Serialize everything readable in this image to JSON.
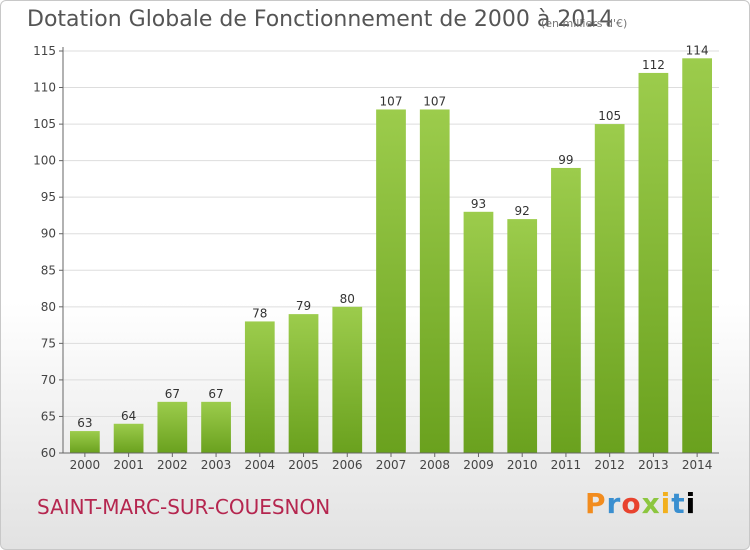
{
  "header": {
    "title": "Dotation Globale de Fonctionnement de 2000 à 2014",
    "unit": "(en milliers d'€)"
  },
  "footer": {
    "commune": "SAINT-MARC-SUR-COUESNON",
    "logo_text": "Proxiti"
  },
  "colors": {
    "bar_top": "#9ccc4c",
    "bar_bottom": "#6aa11e",
    "grid": "#dddddd",
    "title": "#555555",
    "commune": "#b5264f"
  },
  "chart_data": {
    "type": "bar",
    "title": "Dotation Globale de Fonctionnement de 2000 à 2014",
    "subtitle": "(en milliers d'€)",
    "xlabel": "",
    "ylabel": "",
    "categories": [
      "2000",
      "2001",
      "2002",
      "2003",
      "2004",
      "2005",
      "2006",
      "2007",
      "2008",
      "2009",
      "2010",
      "2011",
      "2012",
      "2013",
      "2014"
    ],
    "values": [
      63,
      64,
      67,
      67,
      78,
      79,
      80,
      107,
      107,
      93,
      92,
      99,
      105,
      112,
      114
    ],
    "ylim": [
      60,
      115
    ],
    "yticks": [
      60,
      65,
      70,
      75,
      80,
      85,
      90,
      95,
      100,
      105,
      110,
      115
    ],
    "grid": true,
    "legend": "none"
  }
}
